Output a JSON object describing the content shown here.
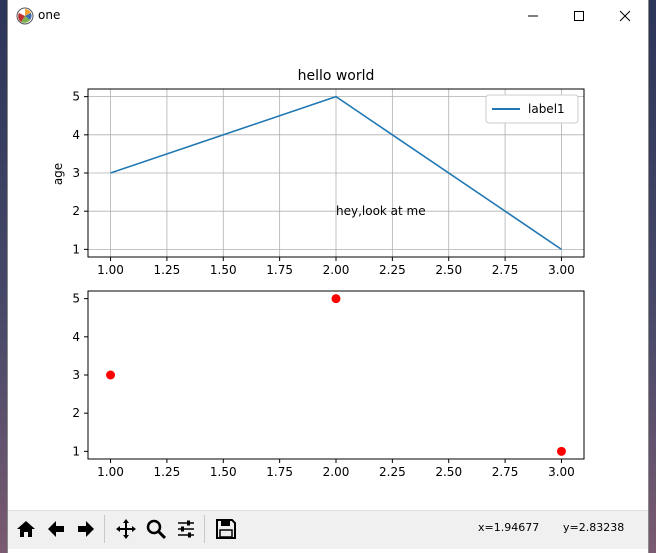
{
  "window": {
    "title": "one"
  },
  "titlebar_buttons": {
    "minimize": "—",
    "maximize": "☐",
    "close": "✕"
  },
  "toolbar": {
    "buttons": [
      "home-icon",
      "back-arrow-icon",
      "forward-arrow-icon",
      "move-icon",
      "zoom-icon",
      "configure-subplots-icon",
      "save-icon"
    ],
    "coords": {
      "x": "x=1.94677",
      "y": "y=2.83238"
    }
  },
  "colors": {
    "line": "#1f77b4",
    "scatter": "#ff0000",
    "grid": "#b0b0b0",
    "axis": "#000000"
  },
  "chart_data": [
    {
      "type": "line",
      "title": "hello world",
      "xlabel": "",
      "ylabel": "age",
      "x": [
        1.0,
        2.0,
        3.0
      ],
      "series": [
        {
          "name": "label1",
          "values": [
            3,
            5,
            1
          ]
        }
      ],
      "xticks": [
        "1.00",
        "1.25",
        "1.50",
        "1.75",
        "2.00",
        "2.25",
        "2.50",
        "2.75",
        "3.00"
      ],
      "yticks": [
        "1",
        "2",
        "3",
        "4",
        "5"
      ],
      "xlim": [
        0.9,
        3.1
      ],
      "ylim": [
        0.8,
        5.2
      ],
      "grid": true,
      "legend": "top-right",
      "annotation": {
        "text": "hey,look at me",
        "x": 2.0,
        "y": 2.0
      }
    },
    {
      "type": "scatter",
      "title": "",
      "xlabel": "",
      "ylabel": "",
      "x": [
        1.0,
        2.0,
        3.0
      ],
      "series": [
        {
          "values": [
            3,
            5,
            1
          ]
        }
      ],
      "xticks": [
        "1.00",
        "1.25",
        "1.50",
        "1.75",
        "2.00",
        "2.25",
        "2.50",
        "2.75",
        "3.00"
      ],
      "yticks": [
        "1",
        "2",
        "3",
        "4",
        "5"
      ],
      "xlim": [
        0.9,
        3.1
      ],
      "ylim": [
        0.8,
        5.2
      ],
      "grid": false
    }
  ]
}
